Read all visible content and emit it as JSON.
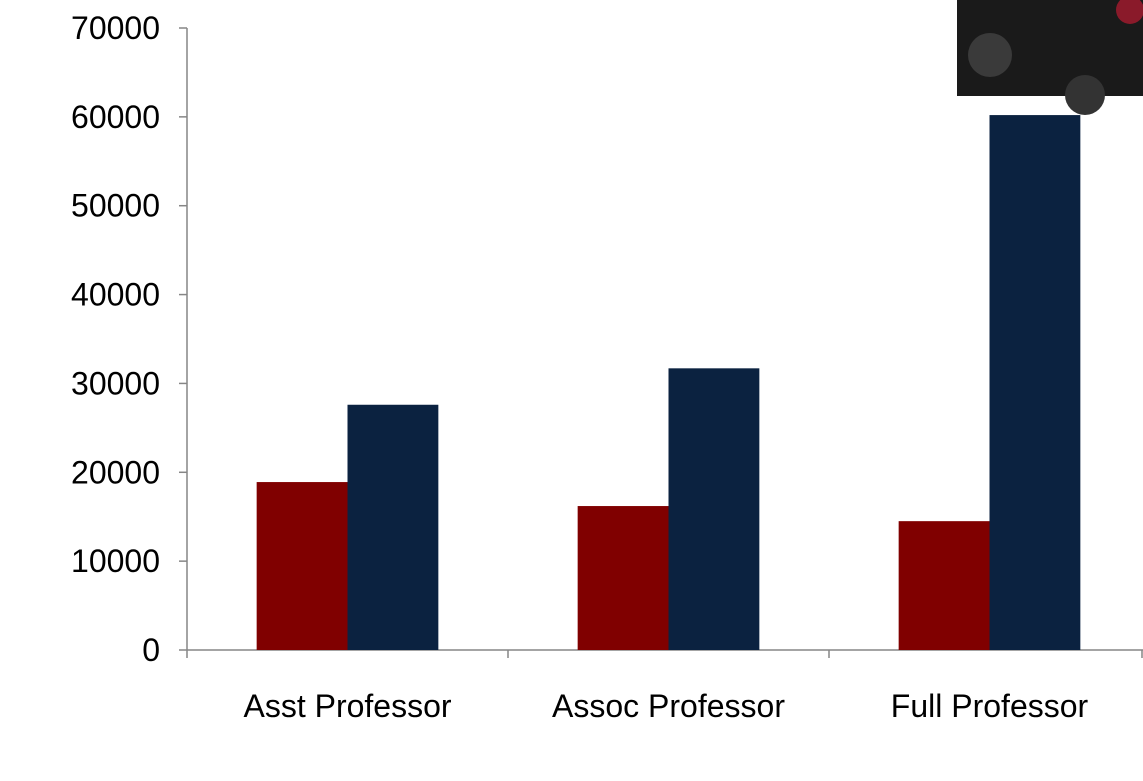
{
  "chart_data": {
    "type": "bar",
    "categories": [
      "Asst Professor",
      "Assoc Professor",
      "Full Professor"
    ],
    "series": [
      {
        "color": "#800000",
        "values": [
          18900,
          16200,
          14500
        ]
      },
      {
        "color": "#0b2240",
        "values": [
          27600,
          31700,
          60200
        ]
      }
    ],
    "ylim": [
      0,
      70000
    ],
    "yticks": [
      0,
      10000,
      20000,
      30000,
      40000,
      50000,
      60000,
      70000
    ],
    "grid": false
  }
}
